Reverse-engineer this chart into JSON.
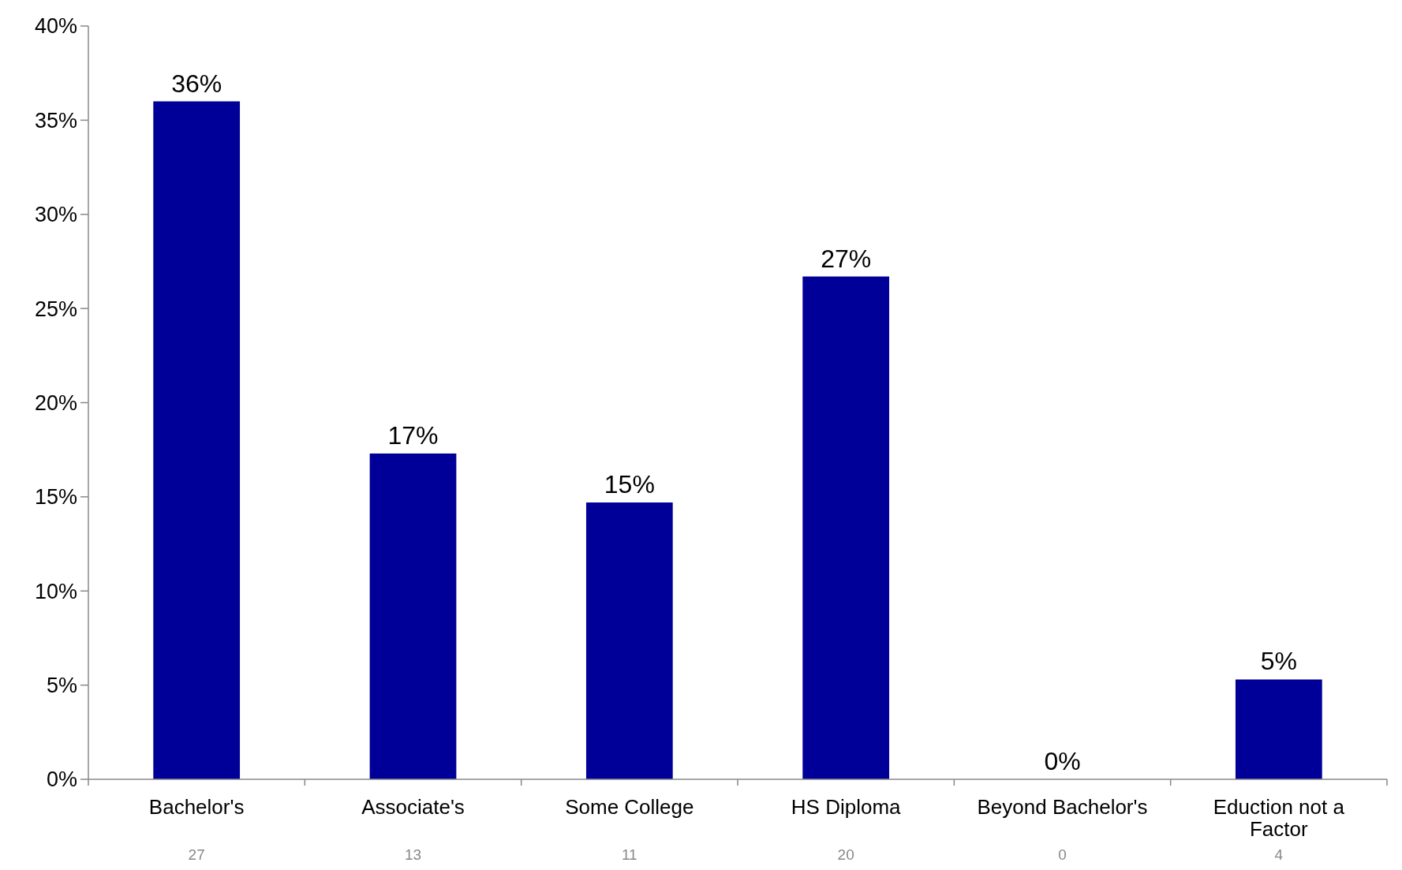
{
  "chart_data": {
    "type": "bar",
    "categories": [
      "Bachelor's",
      "Associate's",
      "Some College",
      "HS Diploma",
      "Beyond Bachelor's",
      "Eduction not a Factor"
    ],
    "values": [
      36,
      17.3,
      14.7,
      26.7,
      0,
      5.3
    ],
    "value_labels": [
      "36%",
      "17%",
      "15%",
      "27%",
      "0%",
      "5%"
    ],
    "color": "#000099",
    "ylim": [
      0,
      40
    ],
    "yticks": [
      {
        "value": 0,
        "label": "0%"
      },
      {
        "value": 5,
        "label": "5%"
      },
      {
        "value": 10,
        "label": "10%"
      },
      {
        "value": 15,
        "label": "15%"
      },
      {
        "value": 20,
        "label": "20%"
      },
      {
        "value": 25,
        "label": "25%"
      },
      {
        "value": 30,
        "label": "30%"
      },
      {
        "value": 35,
        "label": "35%"
      },
      {
        "value": 40,
        "label": "40%"
      }
    ],
    "annotations": [
      "27",
      "13",
      "11",
      "20",
      "0",
      "4"
    ],
    "grid": false
  }
}
